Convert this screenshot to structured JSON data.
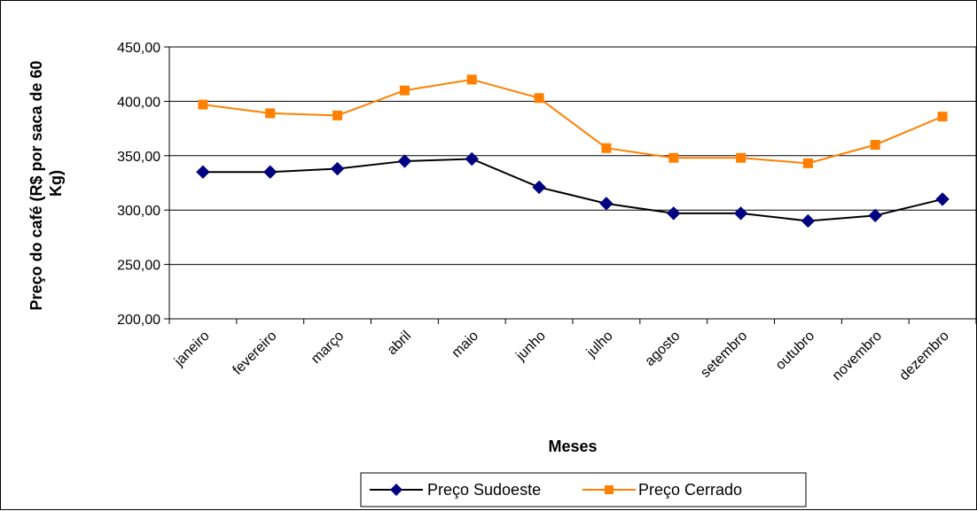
{
  "chart_data": {
    "type": "line",
    "xlabel": "Meses",
    "ylabel_lines": [
      "Preço do café (R$ por saca de 60",
      "Kg)"
    ],
    "categories": [
      "janeiro",
      "fevereiro",
      "março",
      "abril",
      "maio",
      "junho",
      "julho",
      "agosto",
      "setembro",
      "outubro",
      "novembro",
      "dezembro"
    ],
    "ylim": [
      200,
      450
    ],
    "yticks": [
      200,
      250,
      300,
      350,
      400,
      450
    ],
    "ytick_labels": [
      "200,00",
      "250,00",
      "300,00",
      "350,00",
      "400,00",
      "450,00"
    ],
    "grid": true,
    "legend_position": "bottom",
    "series": [
      {
        "name": "Preço Sudoeste",
        "color": "#000080",
        "marker": "diamond",
        "values": [
          335,
          335,
          338,
          345,
          347,
          321,
          306,
          297,
          297,
          290,
          295,
          310
        ]
      },
      {
        "name": "Preço Cerrado",
        "color": "#FF8000",
        "marker": "square",
        "values": [
          397,
          389,
          387,
          410,
          420,
          403,
          357,
          348,
          348,
          343,
          360,
          386
        ]
      }
    ]
  }
}
